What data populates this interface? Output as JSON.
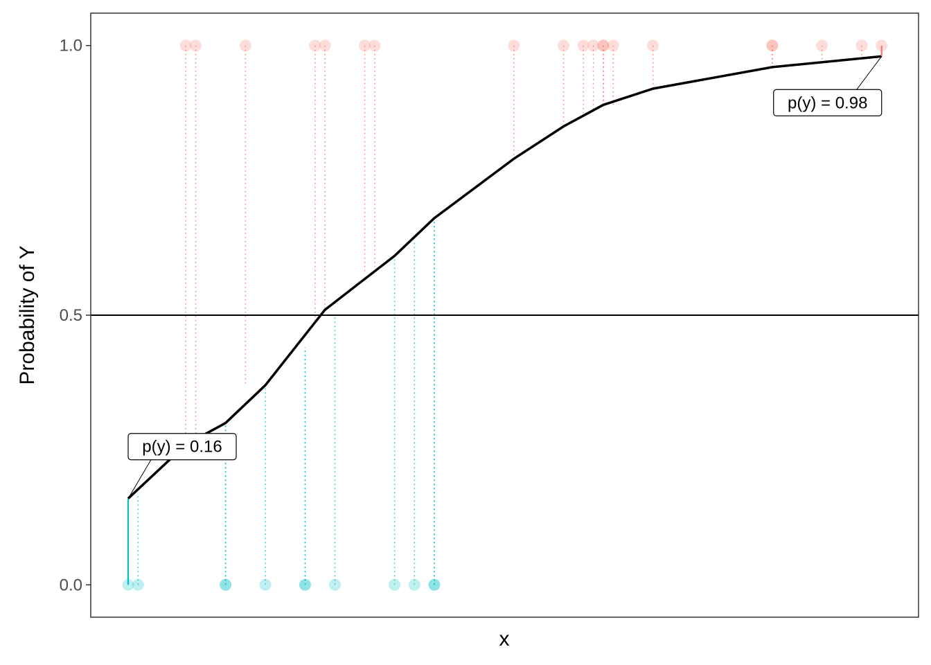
{
  "chart_data": {
    "type": "scatter",
    "title": "",
    "xlabel": "x",
    "ylabel": "Probability of Y",
    "ylim": [
      -0.06,
      1.06
    ],
    "xlim": [
      -0.19,
      3.69
    ],
    "yticks": [
      0.0,
      0.5,
      1.0
    ],
    "ytick_labels": [
      "0.0",
      "0.5",
      "1.0"
    ],
    "x_ticks_shown": false,
    "grid": false,
    "reference_line_y": 0.5,
    "colors": {
      "y1": "#F8766D",
      "y0": "#00BFC4",
      "curve": "#000000",
      "frame": "#333333"
    },
    "series": [
      {
        "y": 1,
        "x": [
          0.29,
          0.34,
          0.59,
          0.94,
          0.99,
          1.19,
          1.24,
          1.94,
          2.19,
          2.29,
          2.34,
          2.39,
          2.39,
          2.44,
          2.64,
          3.24,
          3.24,
          3.49,
          3.69,
          3.79
        ],
        "fitted": [
          0.27,
          0.28,
          0.37,
          0.49,
          0.51,
          0.58,
          0.59,
          0.79,
          0.85,
          0.87,
          0.88,
          0.89,
          0.89,
          0.89,
          0.92,
          0.96,
          0.96,
          0.97,
          0.98,
          0.98
        ]
      },
      {
        "y": 0,
        "x": [
          0.0,
          0.05,
          0.49,
          0.49,
          0.69,
          0.89,
          0.89,
          1.04,
          1.34,
          1.44,
          1.54,
          1.54
        ],
        "fitted": [
          0.16,
          0.17,
          0.3,
          0.3,
          0.37,
          0.44,
          0.44,
          0.5,
          0.61,
          0.64,
          0.68,
          0.68
        ]
      }
    ],
    "curve": {
      "x": [
        0.0,
        0.29,
        0.49,
        0.69,
        0.99,
        1.34,
        1.54,
        1.94,
        2.19,
        2.39,
        2.64,
        3.24,
        3.79
      ],
      "y": [
        0.16,
        0.26,
        0.3,
        0.37,
        0.51,
        0.61,
        0.68,
        0.79,
        0.85,
        0.89,
        0.92,
        0.96,
        0.98
      ]
    },
    "annotations": [
      {
        "label": "p(y) = 0.16",
        "x": 0.0,
        "y": 0.16
      },
      {
        "label": "p(y) = 0.98",
        "x": 3.79,
        "y": 0.98
      }
    ]
  }
}
